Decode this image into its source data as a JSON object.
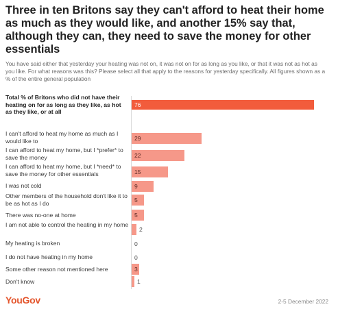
{
  "title": "Three in ten Britons say they can't afford to heat their home as much as they would like, and another 15% say that, although they can, they need to save the money for other essentials",
  "subtitle": "You have said either that yesterday your heating was not on, it was not on for as long as you like, or that it was not as hot as you like. For what reasons was this? Please select all that apply to the reasons for yesterday specifically. All figures shown as a % of the entire general population",
  "brand": "YouGov",
  "date": "2-5 December 2022",
  "colors": {
    "total_bar": "#f25c3c",
    "reason_bar": "#f69889",
    "brand": "#e4542b"
  },
  "chart_data": {
    "type": "bar",
    "orientation": "horizontal",
    "xlim": [
      0,
      76
    ],
    "grid": false,
    "categories": [
      "Total % of Britons who did not have their heating on for as long as they like, as hot as they like, or at all",
      "I can't afford to heat my home as much as I would like to",
      "I can afford to heat my home, but I *prefer* to save the money",
      "I can afford to heat my home, but I *need* to save the money for other essentials",
      "I was not cold",
      "Other members of the household don't like it to be as hot as I do",
      "There was no-one at home",
      "I am not able to control the heating in my home",
      "My heating is broken",
      "I do not have heating in my home",
      "Some other reason not mentioned here",
      "Don't know"
    ],
    "values": [
      76,
      29,
      22,
      15,
      9,
      5,
      5,
      2,
      0,
      0,
      3,
      1
    ]
  }
}
